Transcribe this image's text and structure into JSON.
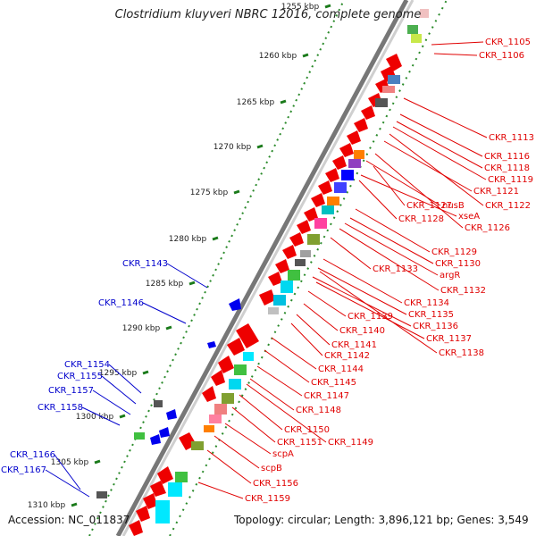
{
  "title": "Clostridium kluyveri NBRC 12016, complete genome",
  "footer": {
    "accession": "Accession: NC_011837",
    "topology": "Topology: circular; Length: 3,896,121 bp; Genes: 3,549"
  },
  "scale_labels": [
    "1255 kbp",
    "1260 kbp",
    "1265 kbp",
    "1270 kbp",
    "1275 kbp",
    "1280 kbp",
    "1285 kbp",
    "1290 kbp",
    "1295 kbp",
    "1300 kbp",
    "1305 kbp",
    "1310 kbp"
  ],
  "right_labels": [
    "CKR_1105",
    "CKR_1106",
    "CKR_1113",
    "CKR_1116",
    "CKR_1118",
    "CKR_1119",
    "CKR_1121",
    "nusB",
    "CKR_1122",
    "CKR_1127",
    "xseA",
    "CKR_1128",
    "CKR_1126",
    "CKR_1129",
    "CKR_1130",
    "argR",
    "CKR_1133",
    "CKR_1132",
    "CKR_1134",
    "CKR_1135",
    "CKR_1136",
    "CKR_1139",
    "CKR_1137",
    "CKR_1140",
    "CKR_1138",
    "CKR_1141",
    "CKR_1142",
    "CKR_1144",
    "CKR_1145",
    "CKR_1147",
    "CKR_1148",
    "CKR_1150",
    "CKR_1151",
    "CKR_1149",
    "scpA",
    "scpB",
    "CKR_1156",
    "CKR_1159"
  ],
  "left_labels": [
    "CKR_1143",
    "CKR_1146",
    "CKR_1154",
    "CKR_1155",
    "CKR_1157",
    "CKR_1158",
    "CKR_1166",
    "CKR_1167"
  ],
  "colors": {
    "forward_gene": "#ee0000",
    "reverse_gene": "#0000ee",
    "right_label": "#e00000",
    "left_label": "#0000cc",
    "scale_dot": "#2a8a2a",
    "backbone": "#888888"
  }
}
